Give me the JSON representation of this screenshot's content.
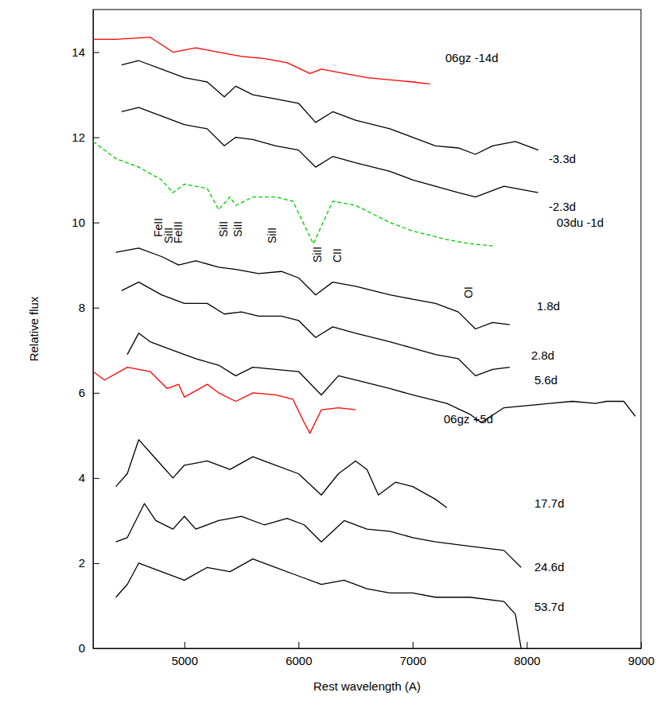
{
  "chart_data": {
    "type": "line",
    "x_label": "Rest wavelength (A)",
    "y_label": "Relative flux",
    "xlim": [
      4200,
      9000
    ],
    "ylim": [
      0,
      15
    ],
    "xticks": [
      5000,
      6000,
      7000,
      8000,
      9000
    ],
    "yticks": [
      0,
      2,
      4,
      6,
      8,
      10,
      12,
      14
    ],
    "grid": false,
    "annotations": [
      "FeII",
      "SiII",
      "FeIII",
      "SiII",
      "SiII",
      "SiII",
      "SiII",
      "CII",
      "OI"
    ],
    "series": [
      {
        "name": "06gz -14d",
        "color": "#ff0000",
        "line_style": "solid",
        "x": [
          4200,
          4400,
          4700,
          4900,
          5100,
          5300,
          5500,
          5700,
          5900,
          6100,
          6200,
          6400,
          6600,
          6800,
          7000,
          7150
        ],
        "values": [
          14.3,
          14.3,
          14.35,
          14.0,
          14.1,
          14.0,
          13.9,
          13.85,
          13.75,
          13.5,
          13.6,
          13.5,
          13.4,
          13.35,
          13.3,
          13.25
        ]
      },
      {
        "name": "-3.3d",
        "color": "#000000",
        "line_style": "solid",
        "x": [
          4450,
          4600,
          4800,
          5000,
          5200,
          5350,
          5450,
          5600,
          5800,
          6000,
          6150,
          6300,
          6500,
          6800,
          7000,
          7200,
          7400,
          7550,
          7700,
          7900,
          8100
        ],
        "values": [
          13.7,
          13.8,
          13.6,
          13.4,
          13.3,
          12.95,
          13.2,
          13.0,
          12.9,
          12.8,
          12.35,
          12.6,
          12.4,
          12.2,
          12.0,
          11.8,
          11.75,
          11.6,
          11.8,
          11.9,
          11.7
        ]
      },
      {
        "name": "-2.3d",
        "color": "#000000",
        "line_style": "solid",
        "x": [
          4450,
          4600,
          4800,
          5000,
          5200,
          5350,
          5450,
          5600,
          5800,
          6000,
          6150,
          6300,
          6500,
          6800,
          7000,
          7200,
          7400,
          7550,
          7800,
          8100
        ],
        "values": [
          12.6,
          12.7,
          12.5,
          12.3,
          12.2,
          11.8,
          12.0,
          11.95,
          11.8,
          11.7,
          11.3,
          11.55,
          11.4,
          11.2,
          11.0,
          10.85,
          10.7,
          10.6,
          10.85,
          10.7
        ]
      },
      {
        "name": "03du -1d",
        "color": "#00cc00",
        "line_style": "dashed",
        "x": [
          4200,
          4400,
          4600,
          4800,
          4900,
          5000,
          5200,
          5300,
          5400,
          5450,
          5600,
          5800,
          5950,
          6130,
          6300,
          6500,
          6800,
          7000,
          7300,
          7500,
          7700
        ],
        "values": [
          11.9,
          11.5,
          11.3,
          11.0,
          10.7,
          10.9,
          10.8,
          10.3,
          10.6,
          10.4,
          10.6,
          10.6,
          10.5,
          9.5,
          10.5,
          10.4,
          10.0,
          9.8,
          9.6,
          9.5,
          9.45
        ]
      },
      {
        "name": "1.8d",
        "color": "#000000",
        "line_style": "solid",
        "x": [
          4400,
          4600,
          4800,
          4950,
          5100,
          5300,
          5450,
          5650,
          5850,
          6000,
          6150,
          6300,
          6500,
          6800,
          7000,
          7200,
          7400,
          7550,
          7700,
          7850
        ],
        "values": [
          9.3,
          9.4,
          9.2,
          9.0,
          9.1,
          8.95,
          8.9,
          8.8,
          8.85,
          8.7,
          8.3,
          8.6,
          8.5,
          8.3,
          8.2,
          8.1,
          7.9,
          7.5,
          7.65,
          7.6
        ]
      },
      {
        "name": "2.8d",
        "color": "#000000",
        "line_style": "solid",
        "x": [
          4450,
          4600,
          4800,
          5000,
          5200,
          5350,
          5500,
          5650,
          5850,
          6000,
          6150,
          6300,
          6500,
          6800,
          7000,
          7200,
          7400,
          7550,
          7700,
          7850
        ],
        "values": [
          8.4,
          8.6,
          8.3,
          8.1,
          8.1,
          7.85,
          7.9,
          7.8,
          7.8,
          7.7,
          7.3,
          7.55,
          7.4,
          7.2,
          7.05,
          6.9,
          6.8,
          6.4,
          6.55,
          6.6
        ]
      },
      {
        "name": "5.6d",
        "color": "#000000",
        "line_style": "solid",
        "x": [
          4500,
          4600,
          4700,
          4900,
          5100,
          5300,
          5450,
          5600,
          5800,
          6000,
          6200,
          6350,
          6500,
          6800,
          7000,
          7300,
          7500,
          7600,
          7800,
          8000,
          8200,
          8400,
          8600,
          8700,
          8850,
          8950
        ],
        "values": [
          6.9,
          7.4,
          7.2,
          7.0,
          6.8,
          6.65,
          6.4,
          6.6,
          6.55,
          6.5,
          5.95,
          6.4,
          6.3,
          6.1,
          5.95,
          5.75,
          5.5,
          5.3,
          5.65,
          5.7,
          5.75,
          5.8,
          5.75,
          5.8,
          5.8,
          5.45
        ]
      },
      {
        "name": "06gz +5d",
        "color": "#ff0000",
        "line_style": "solid",
        "x": [
          4200,
          4300,
          4500,
          4700,
          4850,
          4950,
          5000,
          5200,
          5300,
          5450,
          5600,
          5800,
          5950,
          6050,
          6100,
          6200,
          6350,
          6500
        ],
        "values": [
          6.5,
          6.3,
          6.6,
          6.5,
          6.1,
          6.2,
          5.9,
          6.2,
          6.0,
          5.8,
          6.0,
          5.95,
          5.85,
          5.3,
          5.05,
          5.6,
          5.65,
          5.6
        ]
      },
      {
        "name": "17.7d",
        "color": "#000000",
        "line_style": "solid",
        "x": [
          4400,
          4500,
          4600,
          4700,
          4800,
          4900,
          5000,
          5200,
          5400,
          5600,
          5800,
          6000,
          6200,
          6350,
          6500,
          6600,
          6700,
          6850,
          7000,
          7200,
          7300
        ],
        "values": [
          3.8,
          4.1,
          4.9,
          4.6,
          4.3,
          4.0,
          4.3,
          4.4,
          4.2,
          4.5,
          4.3,
          4.1,
          3.6,
          4.1,
          4.4,
          4.2,
          3.6,
          3.9,
          3.8,
          3.5,
          3.3
        ]
      },
      {
        "name": "24.6d",
        "color": "#000000",
        "line_style": "solid",
        "x": [
          4400,
          4500,
          4650,
          4750,
          4900,
          5000,
          5100,
          5300,
          5500,
          5700,
          5900,
          6050,
          6200,
          6400,
          6600,
          6800,
          7000,
          7200,
          7500,
          7800,
          7950
        ],
        "values": [
          2.5,
          2.6,
          3.4,
          3.0,
          2.8,
          3.1,
          2.8,
          3.0,
          3.1,
          2.9,
          3.05,
          2.9,
          2.5,
          3.0,
          2.8,
          2.75,
          2.6,
          2.5,
          2.4,
          2.3,
          1.9
        ]
      },
      {
        "name": "53.7d",
        "color": "#000000",
        "line_style": "solid",
        "x": [
          4400,
          4500,
          4600,
          4800,
          5000,
          5200,
          5400,
          5600,
          5800,
          6000,
          6200,
          6400,
          6600,
          6800,
          7000,
          7200,
          7500,
          7800,
          7900,
          7950
        ],
        "values": [
          1.2,
          1.5,
          2.0,
          1.8,
          1.6,
          1.9,
          1.8,
          2.1,
          1.9,
          1.7,
          1.5,
          1.6,
          1.4,
          1.3,
          1.3,
          1.2,
          1.2,
          1.1,
          0.8,
          0
        ]
      }
    ]
  }
}
